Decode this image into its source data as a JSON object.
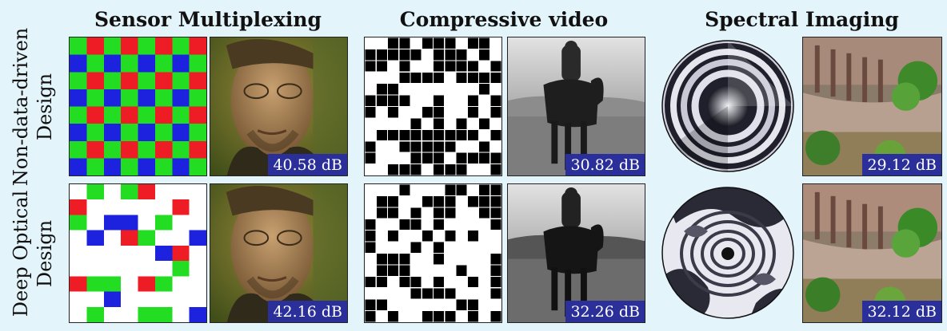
{
  "columns": [
    {
      "title": "Sensor Multiplexing"
    },
    {
      "title": "Compressive video"
    },
    {
      "title": "Spectral Imaging"
    }
  ],
  "rows": [
    {
      "label_line1": "Non-data-driven",
      "label_line2": "Design"
    },
    {
      "label_line1": "Deep Optical",
      "label_line2": "Design"
    }
  ],
  "metrics": {
    "sensor_top": "40.58 dB",
    "sensor_bottom": "42.16 dB",
    "video_top": "30.82 dB",
    "video_bottom": "32.26 dB",
    "spectral_top": "29.12 dB",
    "spectral_bottom": "32.12 dB"
  },
  "colors": {
    "background": "#e3f4fb",
    "badge": "#2a2f9a",
    "bayer_red": "#ee1c24",
    "bayer_green": "#22dd22",
    "bayer_blue": "#1c22dd"
  }
}
